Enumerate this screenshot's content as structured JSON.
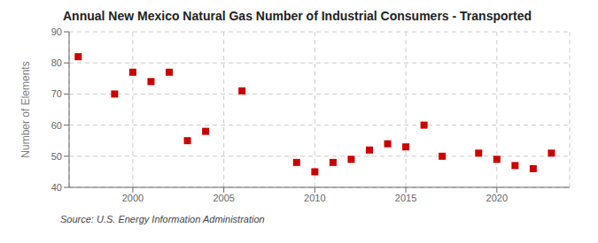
{
  "chart_data": {
    "type": "scatter",
    "title": "Annual New Mexico Natural Gas Number of Industrial Consumers - Transported",
    "y_label": "Number of Elements",
    "annotation": "Source: U.S. Energy Information Administration",
    "x": [
      1997,
      1999,
      2000,
      2001,
      2002,
      2003,
      2004,
      2006,
      2009,
      2010,
      2011,
      2012,
      2013,
      2014,
      2015,
      2016,
      2017,
      2019,
      2020,
      2021,
      2022,
      2023
    ],
    "values": [
      82,
      70,
      77,
      74,
      77,
      55,
      58,
      71,
      48,
      45,
      48,
      49,
      52,
      54,
      53,
      60,
      50,
      51,
      49,
      47,
      46,
      51
    ],
    "color": "#cc0000",
    "marker": "square",
    "xlim": [
      1996.5,
      2024
    ],
    "xticks": [
      2000,
      2005,
      2010,
      2015,
      2020
    ],
    "ylim": [
      40,
      90
    ],
    "yticks": [
      40,
      50,
      60,
      70,
      80,
      90
    ],
    "grid": true
  }
}
